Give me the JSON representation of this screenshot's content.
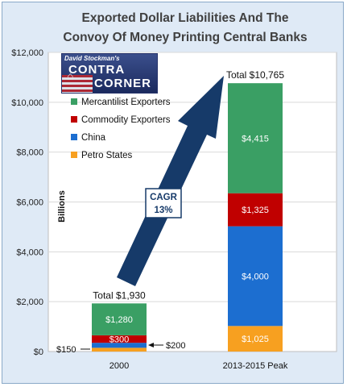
{
  "title_lines": [
    "Exported Dollar Liabilities And The",
    "Convoy Of Money Printing Central Banks"
  ],
  "logo": {
    "top": "David Stockman's",
    "word1": "CONTRA",
    "word2": "CORNER"
  },
  "annotations": {
    "cagr_line1": "CAGR",
    "cagr_line2": "13%",
    "small_left": "$150",
    "small_right": "$200"
  },
  "colors": {
    "mercantilist": "#3a9f64",
    "commodity": "#c00000",
    "china": "#1c6ed0",
    "petro": "#f7a020",
    "arrow": "#163a69",
    "plot_bg": "#ffffff",
    "frame_bg": "#dfeaf6"
  },
  "chart_data": {
    "type": "bar",
    "stacked": true,
    "categories": [
      "2000",
      "2013-2015 Peak"
    ],
    "series": [
      {
        "name": "Petro States",
        "values": [
          150,
          1025
        ],
        "labels": [
          "",
          "$1,025"
        ]
      },
      {
        "name": "China",
        "values": [
          200,
          4000
        ],
        "labels": [
          "",
          "$4,000"
        ]
      },
      {
        "name": "Commodity Exporters",
        "values": [
          300,
          1325
        ],
        "labels": [
          "$300",
          "$1,325"
        ]
      },
      {
        "name": "Mercantilist Exporters",
        "values": [
          1280,
          4415
        ],
        "labels": [
          "$1,280",
          "$4,415"
        ]
      }
    ],
    "legend_order": [
      "Mercantilist Exporters",
      "Commodity Exporters",
      "China",
      "Petro States"
    ],
    "totals": [
      "Total $1,930",
      "Total $10,765"
    ],
    "ylabel": "Billions",
    "ylim": [
      0,
      12000
    ],
    "yticks": [
      0,
      2000,
      4000,
      6000,
      8000,
      10000,
      12000
    ],
    "ytick_labels": [
      "$0",
      "$2,000",
      "$4,000",
      "$6,000",
      "$8,000",
      "$10,000",
      "$12,000"
    ],
    "legend_position": "top-left"
  }
}
